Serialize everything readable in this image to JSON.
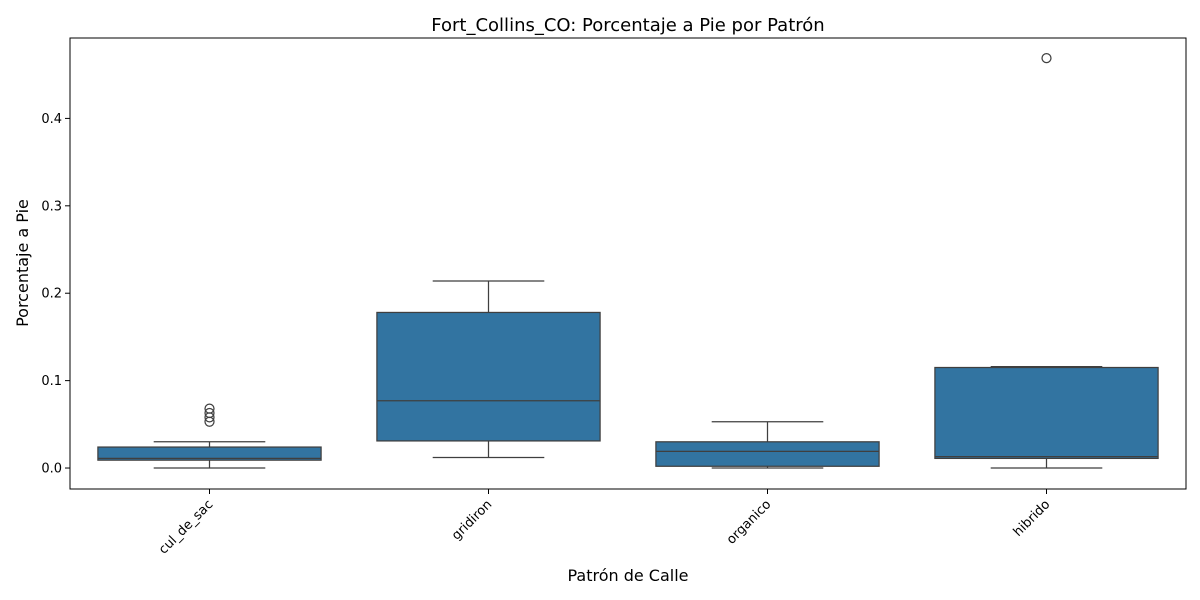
{
  "chart_data": {
    "type": "boxplot",
    "title": "Fort_Collins_CO: Porcentaje a Pie por Patrón",
    "xlabel": "Patrón de Calle",
    "ylabel": "Porcentaje a Pie",
    "ylim": [
      -0.024,
      0.492
    ],
    "yticks": [
      0.0,
      0.1,
      0.2,
      0.3,
      0.4
    ],
    "ytick_labels": [
      "0.0",
      "0.1",
      "0.2",
      "0.3",
      "0.4"
    ],
    "grid": false,
    "legend": "none",
    "box_color": "#3274a1",
    "edge_color": "#3f3f3f",
    "categories": [
      "cul_de_sac",
      "gridiron",
      "organico",
      "hibrido"
    ],
    "boxes": [
      {
        "category": "cul_de_sac",
        "whisker_low": 0.0,
        "q1": 0.009,
        "median": 0.011,
        "q3": 0.024,
        "whisker_high": 0.03,
        "outliers": [
          0.053,
          0.058,
          0.063,
          0.068
        ]
      },
      {
        "category": "gridiron",
        "whisker_low": 0.012,
        "q1": 0.031,
        "median": 0.077,
        "q3": 0.178,
        "whisker_high": 0.214,
        "outliers": []
      },
      {
        "category": "organico",
        "whisker_low": 0.0,
        "q1": 0.002,
        "median": 0.019,
        "q3": 0.03,
        "whisker_high": 0.053,
        "outliers": []
      },
      {
        "category": "hibrido",
        "whisker_low": 0.0,
        "q1": 0.011,
        "median": 0.013,
        "q3": 0.115,
        "whisker_high": 0.116,
        "outliers": [
          0.469
        ]
      }
    ]
  }
}
